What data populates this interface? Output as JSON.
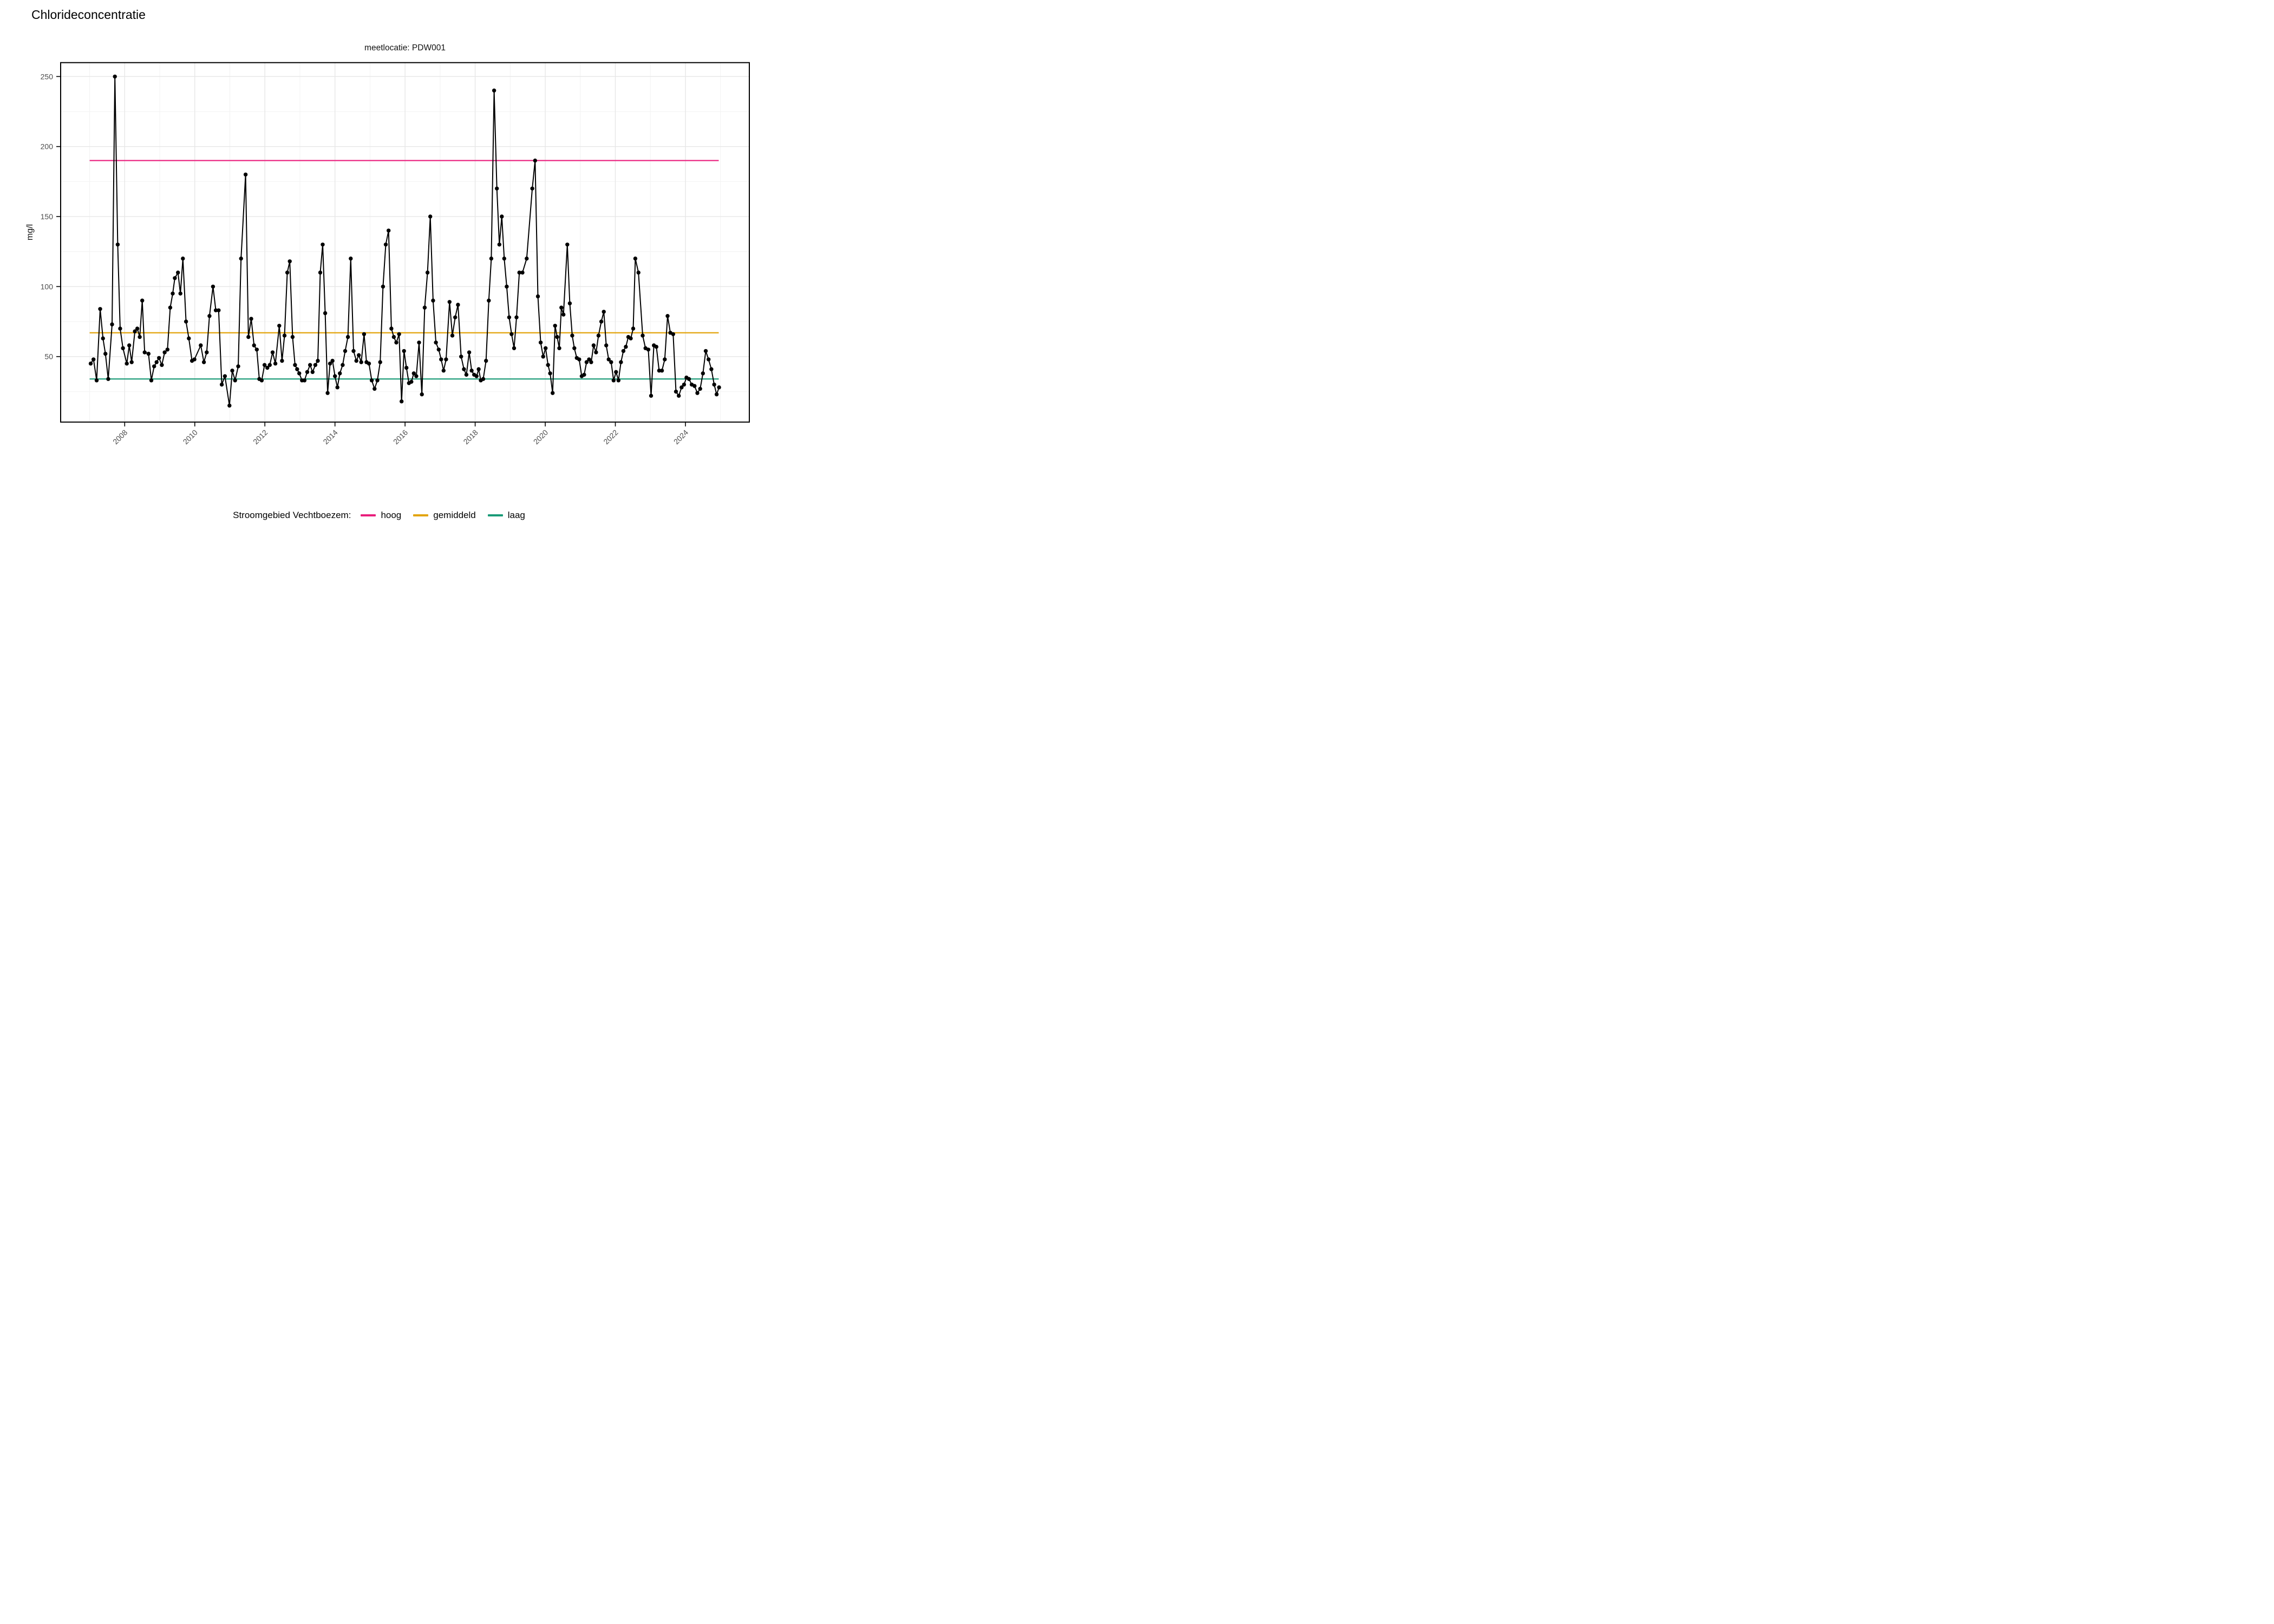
{
  "page": {
    "title": "Chlorideconcentratie",
    "facet_label": "meetlocatie: PDW001"
  },
  "legend": {
    "title": "Stroomgebied Vechtboezem:",
    "items": [
      {
        "label": "hoog",
        "color": "#E91E7C"
      },
      {
        "label": "gemiddeld",
        "color": "#E2A40B"
      },
      {
        "label": "laag",
        "color": "#1A9B77"
      }
    ]
  },
  "colors": {
    "point": "#000000",
    "line": "#000000",
    "axis_text": "#4D4D4D",
    "grid_major": "#E7E7E7",
    "grid_minor": "#F3F3F3",
    "panel_border": "#000000"
  },
  "chart_data": {
    "type": "line",
    "title": "Chlorideconcentratie",
    "subtitle": "meetlocatie: PDW001",
    "xlabel": "",
    "ylabel": "mg/l",
    "grid": "on",
    "legend_position": "bottom",
    "x_ticks": [
      2008,
      2010,
      2012,
      2014,
      2016,
      2018,
      2020,
      2022,
      2024
    ],
    "x_minor_ticks": [
      2007,
      2009,
      2011,
      2013,
      2015,
      2017,
      2019,
      2021,
      2023,
      2025
    ],
    "y_ticks": [
      50,
      100,
      150,
      200,
      250
    ],
    "y_minor_ticks": [
      25,
      75,
      125,
      175,
      225
    ],
    "x_range_years": [
      2006.17,
      2025.82
    ],
    "ylim": [
      3,
      260
    ],
    "reference_span_years": [
      2007.0,
      2024.95
    ],
    "reference_lines": [
      {
        "name": "hoog",
        "value": 190,
        "color": "#E91E7C"
      },
      {
        "name": "gemiddeld",
        "value": 67,
        "color": "#E2A40B"
      },
      {
        "name": "laag",
        "value": 34,
        "color": "#1A9B77"
      }
    ],
    "series_name": "chlorideconcentratie PDW001",
    "points": [
      [
        2007.03,
        45
      ],
      [
        2007.11,
        48
      ],
      [
        2007.2,
        33
      ],
      [
        2007.3,
        84
      ],
      [
        2007.38,
        63
      ],
      [
        2007.45,
        52
      ],
      [
        2007.53,
        34
      ],
      [
        2007.64,
        73
      ],
      [
        2007.72,
        250
      ],
      [
        2007.8,
        130
      ],
      [
        2007.87,
        70
      ],
      [
        2007.95,
        56
      ],
      [
        2008.06,
        45
      ],
      [
        2008.13,
        58
      ],
      [
        2008.2,
        46
      ],
      [
        2008.29,
        68
      ],
      [
        2008.36,
        70
      ],
      [
        2008.43,
        64
      ],
      [
        2008.5,
        90
      ],
      [
        2008.57,
        53
      ],
      [
        2008.68,
        52
      ],
      [
        2008.76,
        33
      ],
      [
        2008.84,
        43
      ],
      [
        2008.91,
        46
      ],
      [
        2008.98,
        49
      ],
      [
        2009.06,
        44
      ],
      [
        2009.14,
        53
      ],
      [
        2009.22,
        55
      ],
      [
        2009.3,
        85
      ],
      [
        2009.37,
        95
      ],
      [
        2009.43,
        106
      ],
      [
        2009.52,
        110
      ],
      [
        2009.59,
        95
      ],
      [
        2009.66,
        120
      ],
      [
        2009.75,
        75
      ],
      [
        2009.83,
        63
      ],
      [
        2009.92,
        47
      ],
      [
        2009.99,
        48
      ],
      [
        2010.17,
        58
      ],
      [
        2010.26,
        46
      ],
      [
        2010.34,
        53
      ],
      [
        2010.42,
        79
      ],
      [
        2010.52,
        100
      ],
      [
        2010.6,
        83
      ],
      [
        2010.68,
        83
      ],
      [
        2010.77,
        30
      ],
      [
        2010.86,
        36
      ],
      [
        2010.99,
        15
      ],
      [
        2011.07,
        40
      ],
      [
        2011.15,
        33
      ],
      [
        2011.24,
        43
      ],
      [
        2011.32,
        120
      ],
      [
        2011.45,
        180
      ],
      [
        2011.53,
        64
      ],
      [
        2011.61,
        77
      ],
      [
        2011.69,
        58
      ],
      [
        2011.77,
        55
      ],
      [
        2011.84,
        34
      ],
      [
        2011.91,
        33
      ],
      [
        2011.99,
        44
      ],
      [
        2012.07,
        42
      ],
      [
        2012.14,
        44
      ],
      [
        2012.22,
        53
      ],
      [
        2012.3,
        45
      ],
      [
        2012.41,
        72
      ],
      [
        2012.49,
        47
      ],
      [
        2012.56,
        65
      ],
      [
        2012.64,
        110
      ],
      [
        2012.71,
        118
      ],
      [
        2012.79,
        64
      ],
      [
        2012.86,
        44
      ],
      [
        2012.92,
        41
      ],
      [
        2012.98,
        38
      ],
      [
        2013.06,
        33
      ],
      [
        2013.13,
        33
      ],
      [
        2013.21,
        39
      ],
      [
        2013.29,
        44
      ],
      [
        2013.36,
        39
      ],
      [
        2013.44,
        44
      ],
      [
        2013.51,
        47
      ],
      [
        2013.58,
        110
      ],
      [
        2013.65,
        130
      ],
      [
        2013.72,
        81
      ],
      [
        2013.79,
        24
      ],
      [
        2013.86,
        45
      ],
      [
        2013.93,
        47
      ],
      [
        2014.0,
        36
      ],
      [
        2014.07,
        28
      ],
      [
        2014.14,
        38
      ],
      [
        2014.22,
        44
      ],
      [
        2014.29,
        54
      ],
      [
        2014.37,
        64
      ],
      [
        2014.45,
        120
      ],
      [
        2014.53,
        54
      ],
      [
        2014.61,
        47
      ],
      [
        2014.68,
        51
      ],
      [
        2014.75,
        46
      ],
      [
        2014.83,
        66
      ],
      [
        2014.9,
        46
      ],
      [
        2014.97,
        45
      ],
      [
        2015.05,
        33
      ],
      [
        2015.13,
        27
      ],
      [
        2015.21,
        33
      ],
      [
        2015.29,
        46
      ],
      [
        2015.37,
        100
      ],
      [
        2015.45,
        130
      ],
      [
        2015.53,
        140
      ],
      [
        2015.61,
        70
      ],
      [
        2015.68,
        64
      ],
      [
        2015.75,
        60
      ],
      [
        2015.83,
        66
      ],
      [
        2015.9,
        18
      ],
      [
        2015.97,
        54
      ],
      [
        2016.04,
        42
      ],
      [
        2016.11,
        31
      ],
      [
        2016.18,
        32
      ],
      [
        2016.25,
        38
      ],
      [
        2016.32,
        36
      ],
      [
        2016.4,
        60
      ],
      [
        2016.48,
        23
      ],
      [
        2016.56,
        85
      ],
      [
        2016.64,
        110
      ],
      [
        2016.72,
        150
      ],
      [
        2016.8,
        90
      ],
      [
        2016.88,
        60
      ],
      [
        2016.96,
        55
      ],
      [
        2017.03,
        48
      ],
      [
        2017.1,
        40
      ],
      [
        2017.17,
        48
      ],
      [
        2017.27,
        89
      ],
      [
        2017.35,
        65
      ],
      [
        2017.43,
        78
      ],
      [
        2017.51,
        87
      ],
      [
        2017.6,
        50
      ],
      [
        2017.68,
        41
      ],
      [
        2017.75,
        37
      ],
      [
        2017.83,
        53
      ],
      [
        2017.9,
        40
      ],
      [
        2017.97,
        37
      ],
      [
        2018.04,
        36
      ],
      [
        2018.1,
        41
      ],
      [
        2018.16,
        33
      ],
      [
        2018.23,
        34
      ],
      [
        2018.31,
        47
      ],
      [
        2018.39,
        90
      ],
      [
        2018.46,
        120
      ],
      [
        2018.54,
        240
      ],
      [
        2018.62,
        170
      ],
      [
        2018.69,
        130
      ],
      [
        2018.76,
        150
      ],
      [
        2018.83,
        120
      ],
      [
        2018.9,
        100
      ],
      [
        2018.97,
        78
      ],
      [
        2019.04,
        66
      ],
      [
        2019.11,
        56
      ],
      [
        2019.18,
        78
      ],
      [
        2019.26,
        110
      ],
      [
        2019.35,
        110
      ],
      [
        2019.47,
        120
      ],
      [
        2019.63,
        170
      ],
      [
        2019.71,
        190
      ],
      [
        2019.79,
        93
      ],
      [
        2019.87,
        60
      ],
      [
        2019.94,
        50
      ],
      [
        2020.01,
        56
      ],
      [
        2020.08,
        44
      ],
      [
        2020.14,
        38
      ],
      [
        2020.21,
        24
      ],
      [
        2020.28,
        72
      ],
      [
        2020.34,
        64
      ],
      [
        2020.4,
        56
      ],
      [
        2020.46,
        85
      ],
      [
        2020.52,
        80
      ],
      [
        2020.63,
        130
      ],
      [
        2020.7,
        88
      ],
      [
        2020.77,
        65
      ],
      [
        2020.83,
        56
      ],
      [
        2020.9,
        49
      ],
      [
        2020.97,
        48
      ],
      [
        2021.04,
        36
      ],
      [
        2021.11,
        37
      ],
      [
        2021.18,
        46
      ],
      [
        2021.25,
        48
      ],
      [
        2021.31,
        46
      ],
      [
        2021.38,
        58
      ],
      [
        2021.45,
        53
      ],
      [
        2021.52,
        65
      ],
      [
        2021.6,
        75
      ],
      [
        2021.67,
        82
      ],
      [
        2021.74,
        58
      ],
      [
        2021.81,
        48
      ],
      [
        2021.88,
        46
      ],
      [
        2021.95,
        33
      ],
      [
        2022.02,
        39
      ],
      [
        2022.09,
        33
      ],
      [
        2022.16,
        46
      ],
      [
        2022.23,
        54
      ],
      [
        2022.3,
        57
      ],
      [
        2022.37,
        64
      ],
      [
        2022.44,
        63
      ],
      [
        2022.51,
        70
      ],
      [
        2022.57,
        120
      ],
      [
        2022.66,
        110
      ],
      [
        2022.78,
        65
      ],
      [
        2022.86,
        56
      ],
      [
        2022.94,
        55
      ],
      [
        2023.02,
        22
      ],
      [
        2023.1,
        58
      ],
      [
        2023.17,
        57
      ],
      [
        2023.25,
        40
      ],
      [
        2023.33,
        40
      ],
      [
        2023.41,
        48
      ],
      [
        2023.49,
        79
      ],
      [
        2023.57,
        67
      ],
      [
        2023.65,
        66
      ],
      [
        2023.73,
        25
      ],
      [
        2023.81,
        22
      ],
      [
        2023.89,
        28
      ],
      [
        2023.96,
        30
      ],
      [
        2024.03,
        35
      ],
      [
        2024.1,
        34
      ],
      [
        2024.18,
        30
      ],
      [
        2024.26,
        29
      ],
      [
        2024.34,
        24
      ],
      [
        2024.42,
        27
      ],
      [
        2024.5,
        38
      ],
      [
        2024.58,
        54
      ],
      [
        2024.66,
        48
      ],
      [
        2024.74,
        41
      ],
      [
        2024.82,
        30
      ],
      [
        2024.89,
        23
      ],
      [
        2024.96,
        28
      ]
    ]
  }
}
